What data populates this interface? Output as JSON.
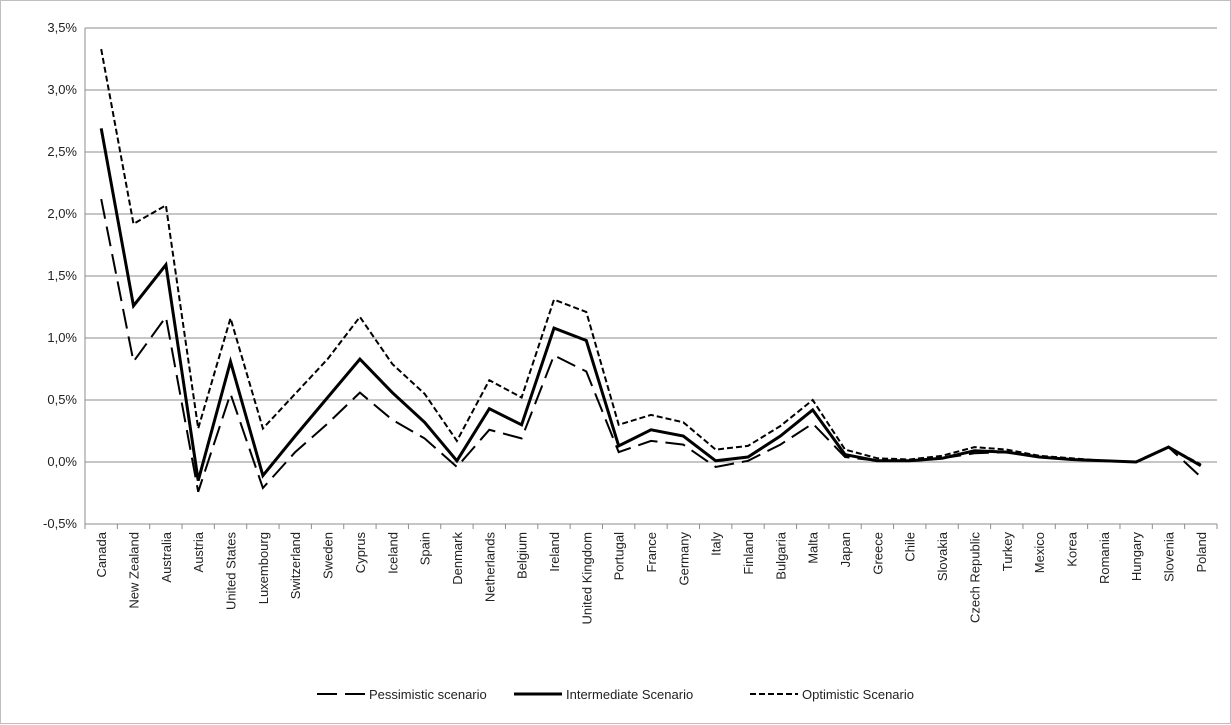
{
  "chart_data": {
    "type": "line",
    "title": "",
    "xlabel": "",
    "ylabel": "",
    "ylim": [
      -0.005,
      0.035
    ],
    "yticks": [
      "-0,5%",
      "0,0%",
      "0,5%",
      "1,0%",
      "1,5%",
      "2,0%",
      "2,5%",
      "3,0%",
      "3,5%"
    ],
    "yticks_values": [
      -0.005,
      0.0,
      0.005,
      0.01,
      0.015,
      0.02,
      0.025,
      0.03,
      0.035
    ],
    "grid": "horizontal",
    "legend_position": "bottom",
    "categories": [
      "Canada",
      "New Zealand",
      "Australia",
      "Austria",
      "United States",
      "Luxembourg",
      "Switzerland",
      "Sweden",
      "Cyprus",
      "Iceland",
      "Spain",
      "Denmark",
      "Netherlands",
      "Belgium",
      "Ireland",
      "United Kingdom",
      "Portugal",
      "France",
      "Germany",
      "Italy",
      "Finland",
      "Bulgaria",
      "Malta",
      "Japan",
      "Greece",
      "Chile",
      "Slovakia",
      "Czech Republic",
      "Turkey",
      "Mexico",
      "Korea",
      "Romania",
      "Hungary",
      "Slovenia",
      "Poland"
    ],
    "series": [
      {
        "name": "Pessimistic scenario",
        "dash": "long-dash",
        "color": "#000000",
        "values": [
          0.0212,
          0.0081,
          0.0117,
          -0.0024,
          0.0055,
          -0.0021,
          0.0008,
          0.0031,
          0.0056,
          0.0034,
          0.0019,
          -0.0004,
          0.0026,
          0.0019,
          0.0086,
          0.0073,
          0.0008,
          0.0017,
          0.0014,
          -0.0004,
          0.0001,
          0.0014,
          0.0031,
          0.0004,
          0.0001,
          0.0001,
          0.0003,
          0.0007,
          0.0008,
          0.0004,
          0.0002,
          0.0001,
          0.0,
          0.0012,
          -0.0012
        ]
      },
      {
        "name": "Intermediate Scenario",
        "dash": "solid",
        "color": "#000000",
        "values": [
          0.0269,
          0.0126,
          0.0159,
          -0.0015,
          0.0081,
          -0.0011,
          0.0021,
          0.0052,
          0.0083,
          0.0056,
          0.0032,
          0.0001,
          0.0043,
          0.003,
          0.0108,
          0.0098,
          0.0013,
          0.0026,
          0.0021,
          0.0001,
          0.0004,
          0.0021,
          0.0042,
          0.0006,
          0.0001,
          0.0001,
          0.0003,
          0.0009,
          0.0008,
          0.0004,
          0.0002,
          0.0001,
          0.0,
          0.0012,
          -0.0003
        ]
      },
      {
        "name": "Optimistic Scenario",
        "dash": "short-dash",
        "color": "#000000",
        "values": [
          0.0333,
          0.0192,
          0.0207,
          0.0027,
          0.0116,
          0.0027,
          0.0055,
          0.0083,
          0.0117,
          0.0079,
          0.0055,
          0.0017,
          0.0066,
          0.0052,
          0.0131,
          0.0121,
          0.003,
          0.0038,
          0.0032,
          0.001,
          0.0013,
          0.0029,
          0.005,
          0.001,
          0.0003,
          0.0002,
          0.0005,
          0.0012,
          0.001,
          0.0005,
          0.0003,
          0.0001,
          0.0,
          0.0012,
          -0.0002
        ]
      }
    ]
  }
}
